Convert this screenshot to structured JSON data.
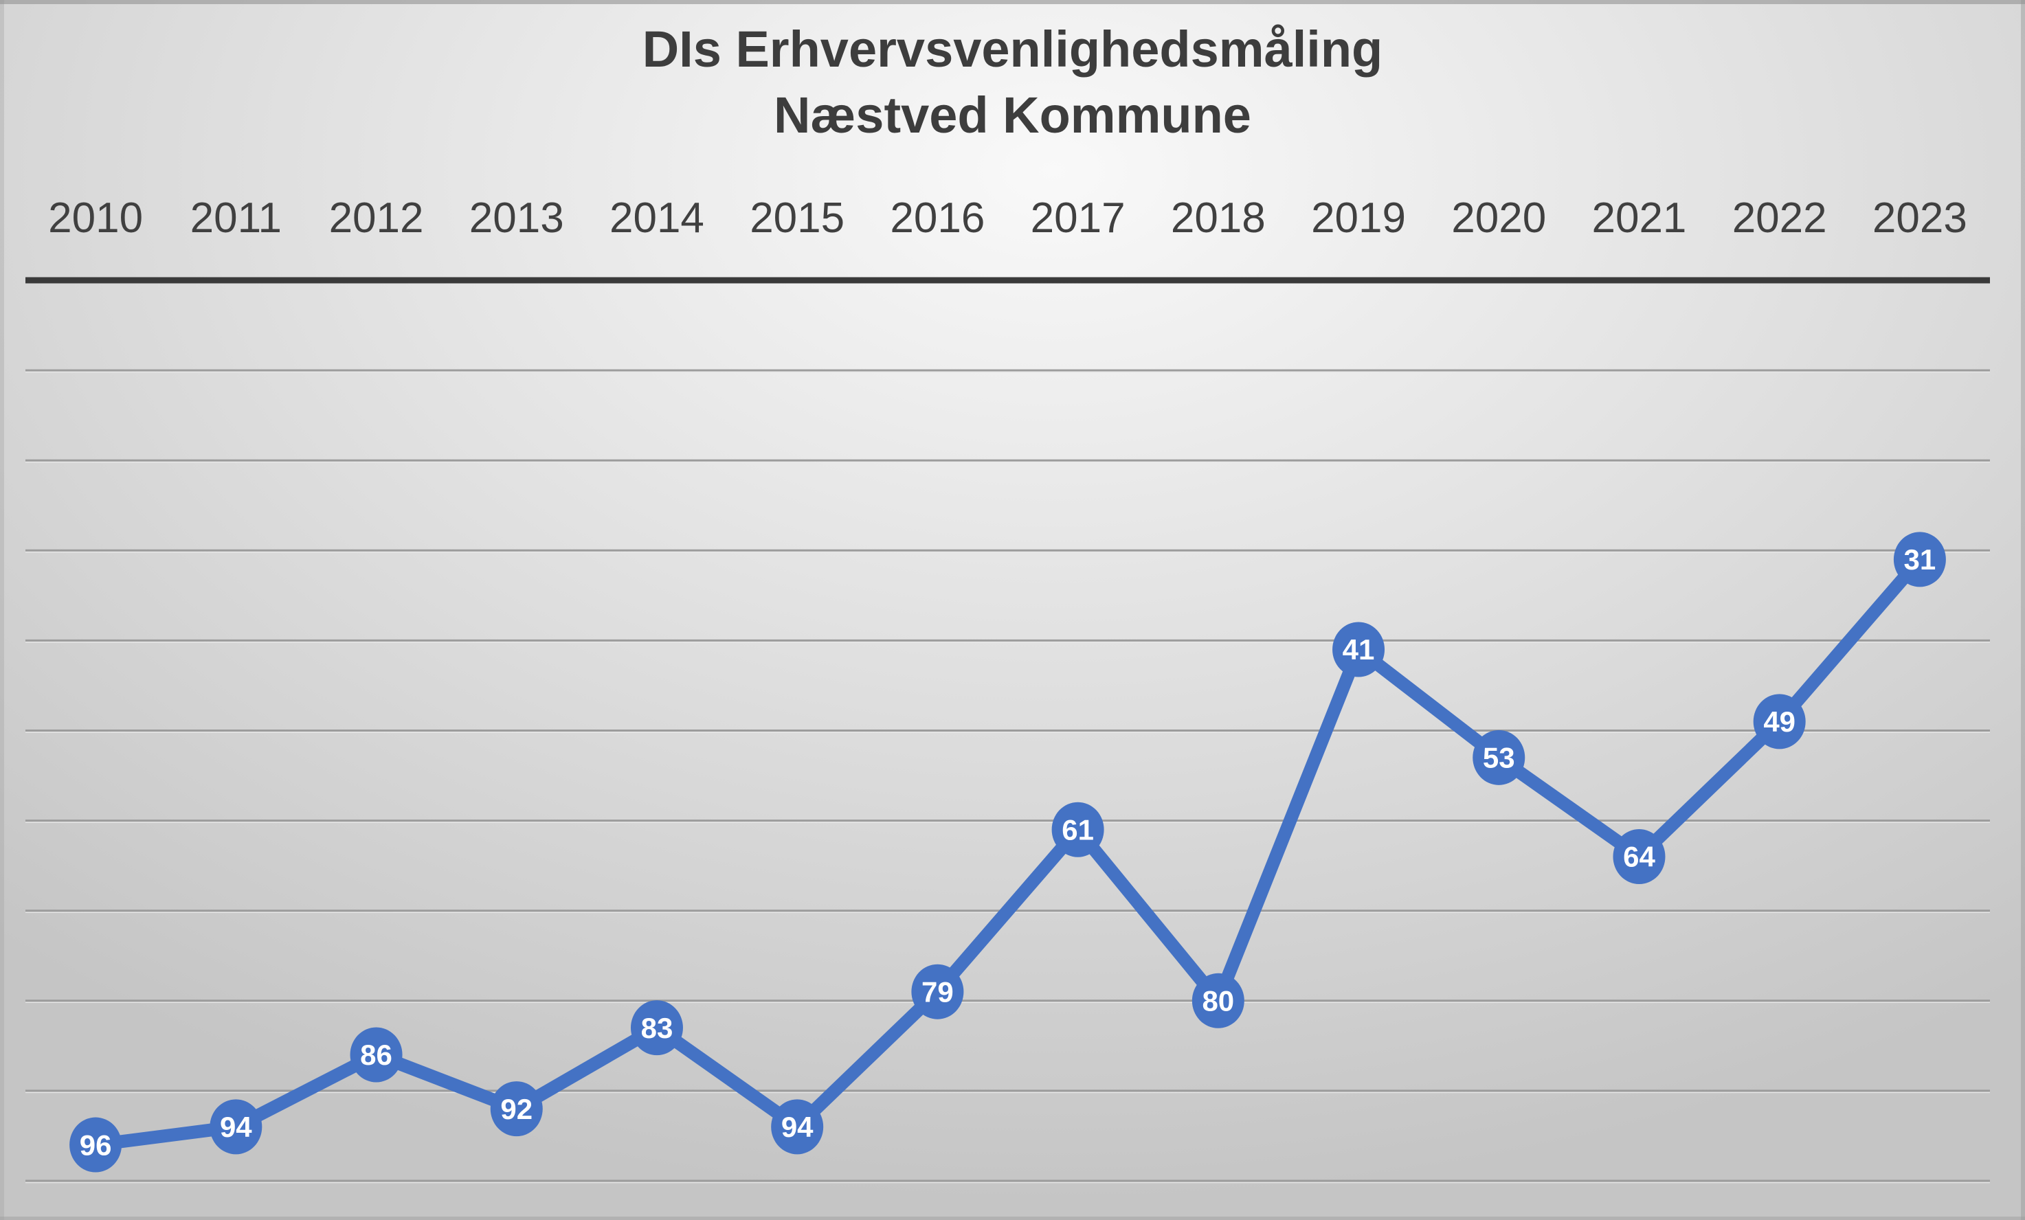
{
  "slide": {
    "background": {
      "center": "#f9f9f9",
      "mid": "#e2e2e2",
      "outer": "#c5c5c5"
    }
  },
  "chart_data": {
    "type": "line",
    "title": "DIs Erhvervsvenlighedsmåling",
    "subtitle": "Næstved Kommune",
    "categories": [
      "2010",
      "2011",
      "2012",
      "2013",
      "2014",
      "2015",
      "2016",
      "2017",
      "2018",
      "2019",
      "2020",
      "2021",
      "2022",
      "2023"
    ],
    "values": [
      96,
      94,
      86,
      92,
      83,
      94,
      79,
      61,
      80,
      41,
      53,
      64,
      49,
      31
    ],
    "x_axis": {
      "position": "top",
      "label_color": "#404040"
    },
    "y_axis": {
      "inverted": true,
      "min": 0,
      "max": 100,
      "gridline_step": 10,
      "tick_labels_visible": false
    },
    "legend": "none",
    "grid": true,
    "data_labels": {
      "visible": true,
      "position": "center",
      "color": "#ffffff"
    },
    "colors": {
      "line": "#4472c4",
      "marker": "#4472c4",
      "axis_line": "#3a3a3a",
      "gridline": "#9c9c9c",
      "gridline_highlight": "#e9e9e9",
      "text": "#404040"
    }
  }
}
